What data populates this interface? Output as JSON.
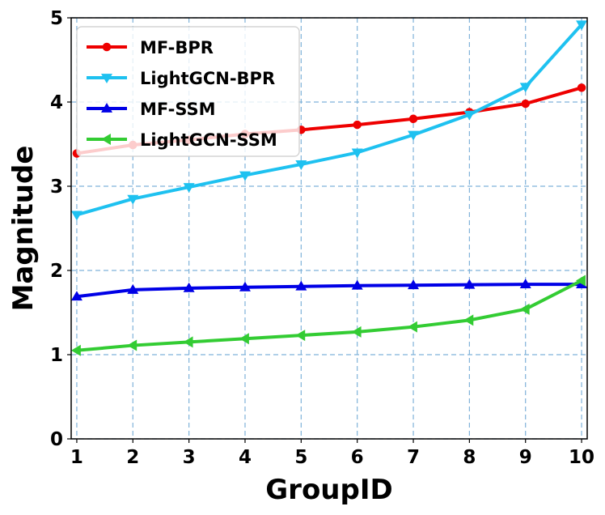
{
  "chart_data": {
    "type": "line",
    "title": "",
    "xlabel": "GroupID",
    "ylabel": "Magnitude",
    "x": [
      1,
      2,
      3,
      4,
      5,
      6,
      7,
      8,
      9,
      10
    ],
    "xlim": [
      0.9,
      10.1
    ],
    "ylim": [
      0,
      5
    ],
    "xticks": [
      "1",
      "2",
      "3",
      "4",
      "5",
      "6",
      "7",
      "8",
      "9",
      "10"
    ],
    "yticks": [
      "0",
      "1",
      "2",
      "3",
      "4",
      "5"
    ],
    "grid": true,
    "legend_position": "top-left",
    "series": [
      {
        "name": "MF-BPR",
        "color": "#ee0000",
        "marker": "circle",
        "values": [
          3.39,
          3.49,
          3.55,
          3.62,
          3.67,
          3.73,
          3.8,
          3.88,
          3.98,
          4.17
        ]
      },
      {
        "name": "LightGCN-BPR",
        "color": "#1ec1f0",
        "marker": "triangle-down",
        "values": [
          2.66,
          2.85,
          2.99,
          3.13,
          3.26,
          3.4,
          3.61,
          3.85,
          4.18,
          4.92
        ]
      },
      {
        "name": "MF-SSM",
        "color": "#0000e6",
        "marker": "triangle-up",
        "values": [
          1.69,
          1.77,
          1.79,
          1.8,
          1.81,
          1.82,
          1.825,
          1.83,
          1.835,
          1.835
        ]
      },
      {
        "name": "LightGCN-SSM",
        "color": "#33cc33",
        "marker": "triangle-left",
        "values": [
          1.05,
          1.11,
          1.15,
          1.19,
          1.23,
          1.27,
          1.33,
          1.41,
          1.54,
          1.88
        ]
      }
    ]
  }
}
